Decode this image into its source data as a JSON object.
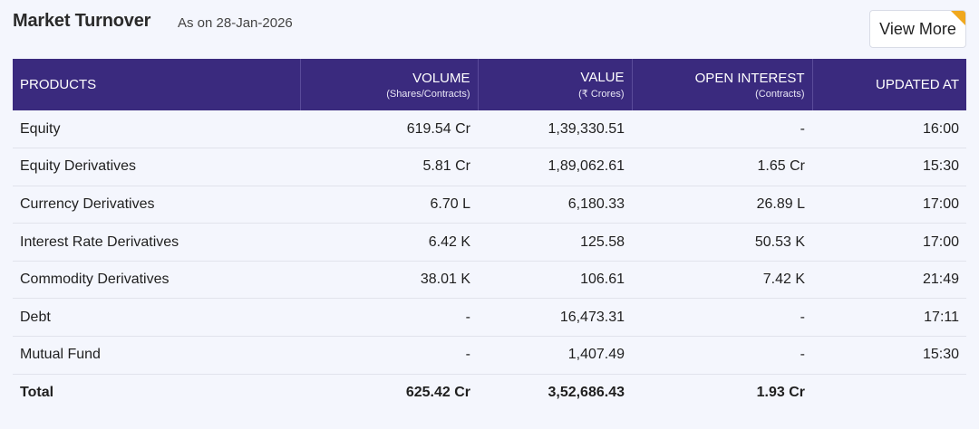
{
  "header": {
    "title": "Market Turnover",
    "as_on": "As on 28-Jan-2026",
    "view_more_label": "View More"
  },
  "table": {
    "columns": [
      {
        "label": "PRODUCTS",
        "sub": ""
      },
      {
        "label": "VOLUME",
        "sub": "(Shares/Contracts)"
      },
      {
        "label": "VALUE",
        "sub": "(₹ Crores)"
      },
      {
        "label": "OPEN INTEREST",
        "sub": "(Contracts)"
      },
      {
        "label": "UPDATED AT",
        "sub": ""
      }
    ],
    "rows": [
      {
        "product": "Equity",
        "volume": "619.54 Cr",
        "value": "1,39,330.51",
        "oi": "-",
        "updated": "16:00"
      },
      {
        "product": "Equity Derivatives",
        "volume": "5.81 Cr",
        "value": "1,89,062.61",
        "oi": "1.65 Cr",
        "updated": "15:30"
      },
      {
        "product": "Currency Derivatives",
        "volume": "6.70 L",
        "value": "6,180.33",
        "oi": "26.89 L",
        "updated": "17:00"
      },
      {
        "product": "Interest Rate Derivatives",
        "volume": "6.42 K",
        "value": "125.58",
        "oi": "50.53 K",
        "updated": "17:00"
      },
      {
        "product": "Commodity Derivatives",
        "volume": "38.01 K",
        "value": "106.61",
        "oi": "7.42 K",
        "updated": "21:49"
      },
      {
        "product": "Debt",
        "volume": "-",
        "value": "16,473.31",
        "oi": "-",
        "updated": "17:11"
      },
      {
        "product": "Mutual Fund",
        "volume": "-",
        "value": "1,407.49",
        "oi": "-",
        "updated": "15:30"
      }
    ],
    "total": {
      "product": "Total",
      "volume": "625.42 Cr",
      "value": "3,52,686.43",
      "oi": "1.93 Cr",
      "updated": ""
    }
  },
  "colors": {
    "header_bg": "#3a2a7e",
    "accent_corner": "#f0a81e",
    "page_bg": "#f4f6fd"
  }
}
